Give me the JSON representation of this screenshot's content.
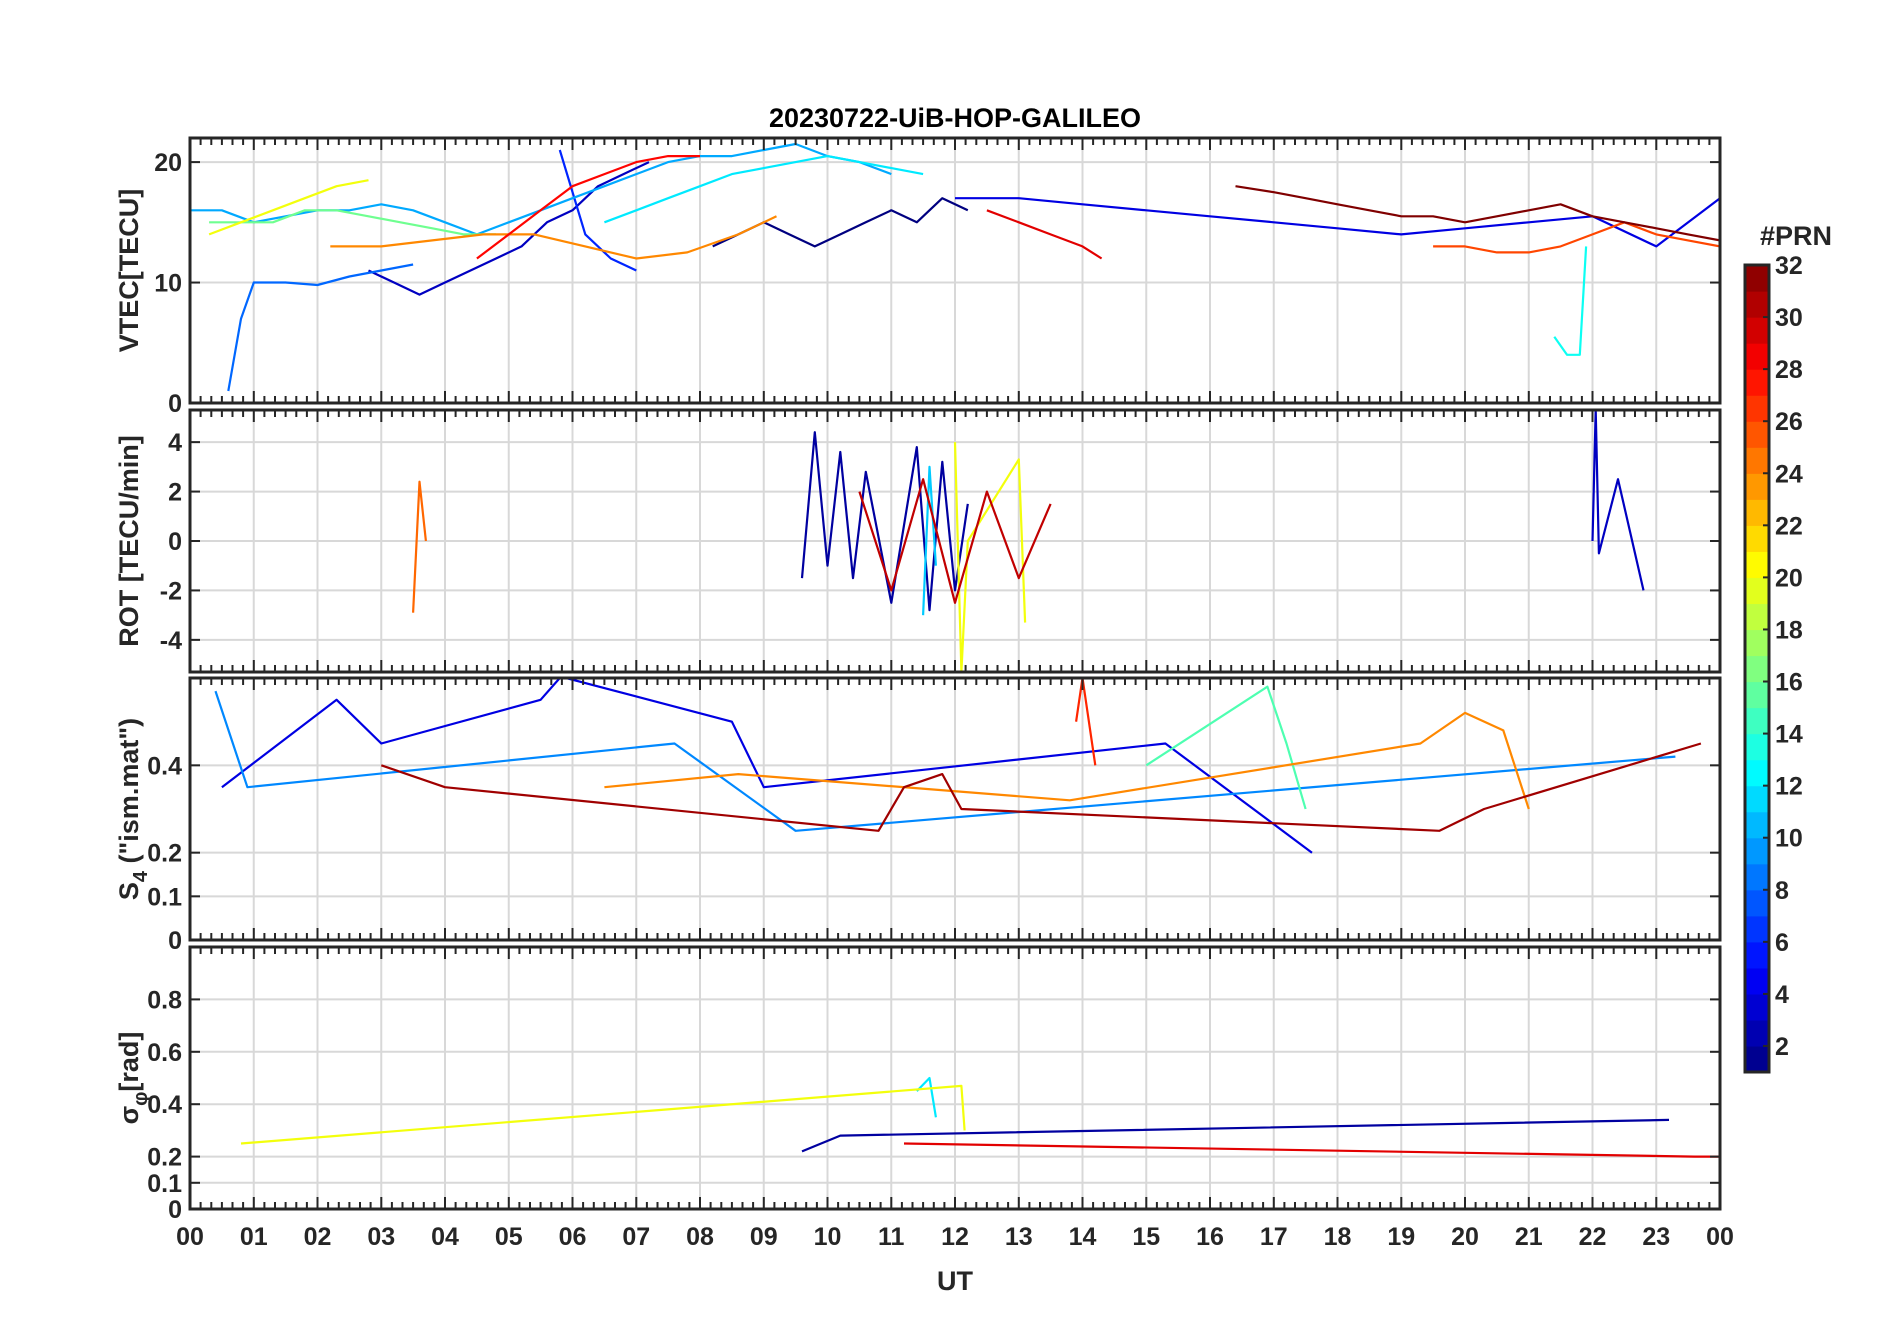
{
  "chart_data": {
    "type": "line",
    "title": "20230722-UiB-HOP-GALILEO",
    "x_axis": {
      "label": "UT",
      "range": [
        0,
        24
      ],
      "tick_labels": [
        "00",
        "01",
        "02",
        "03",
        "04",
        "05",
        "06",
        "07",
        "08",
        "09",
        "10",
        "11",
        "12",
        "13",
        "14",
        "15",
        "16",
        "17",
        "18",
        "19",
        "20",
        "21",
        "22",
        "23",
        "00"
      ],
      "grid": true
    },
    "panels": [
      {
        "ylabel": "VTEC[TECU]",
        "ylim": [
          0,
          22
        ],
        "yticks": [
          0,
          10,
          20
        ],
        "ytick_labels": [
          "0",
          "10",
          "20"
        ],
        "series": [
          {
            "prn": 1,
            "x": [
              8.2,
              8.6,
              9.0,
              9.4,
              9.8,
              10.2,
              10.6,
              11.0,
              11.4,
              11.8,
              12.2
            ],
            "y": [
              13,
              14,
              15,
              14,
              13,
              14,
              15,
              16,
              15,
              17,
              16
            ]
          },
          {
            "prn": 3,
            "x": [
              2.8,
              3.2,
              3.6,
              4.0,
              4.4,
              4.8,
              5.2,
              5.6,
              6.0,
              6.4,
              6.8,
              7.2
            ],
            "y": [
              11,
              10,
              9,
              10,
              11,
              12,
              13,
              15,
              16,
              18,
              19,
              20
            ]
          },
          {
            "prn": 4,
            "x": [
              12.0,
              13.0,
              14.0,
              15.0,
              16.0,
              17.0,
              18.0,
              19.0,
              20.0,
              21.0,
              22.0,
              23.0,
              24.0
            ],
            "y": [
              17,
              17,
              16.5,
              16,
              15.5,
              15,
              14.5,
              14,
              14.5,
              15,
              15.5,
              13,
              17
            ]
          },
          {
            "prn": 6,
            "x": [
              5.8,
              6.2,
              6.6,
              7.0
            ],
            "y": [
              21,
              14,
              12,
              11
            ]
          },
          {
            "prn": 8,
            "x": [
              0.6,
              0.8,
              1.0,
              1.5,
              2.0,
              2.5,
              3.0,
              3.5
            ],
            "y": [
              1,
              7,
              10,
              10,
              9.8,
              10.5,
              11,
              11.5
            ]
          },
          {
            "prn": 10,
            "x": [
              0.0,
              0.5,
              1.0,
              1.5,
              2.0,
              2.5,
              3.0,
              3.5,
              4.0,
              4.5,
              5.0,
              5.5,
              6.0,
              6.5,
              7.0,
              7.5,
              8.0,
              8.5,
              9.0,
              9.5,
              10.0,
              10.5,
              11.0
            ],
            "y": [
              16,
              16,
              15,
              15.5,
              16,
              16,
              16.5,
              16,
              15,
              14,
              15,
              16,
              17,
              18,
              19,
              20,
              20.5,
              20.5,
              21,
              21.5,
              20.5,
              20,
              19
            ]
          },
          {
            "prn": 12,
            "x": [
              6.5,
              7.0,
              7.5,
              8.0,
              8.5,
              9.0,
              9.5,
              10.0,
              10.5,
              11.0,
              11.5
            ],
            "y": [
              15,
              16,
              17,
              18,
              19,
              19.5,
              20,
              20.5,
              20,
              19.5,
              19
            ]
          },
          {
            "prn": 13,
            "x": [
              21.4,
              21.6,
              21.8,
              21.9
            ],
            "y": [
              5.5,
              4,
              4,
              13
            ]
          },
          {
            "prn": 16,
            "x": [
              0.3,
              0.8,
              1.3,
              1.8,
              2.3,
              2.8,
              3.3,
              3.8,
              4.3,
              4.8
            ],
            "y": [
              15,
              15,
              15,
              16,
              16,
              15.5,
              15,
              14.5,
              14,
              14
            ]
          },
          {
            "prn": 20,
            "x": [
              0.3,
              0.8,
              1.3,
              1.8,
              2.3,
              2.8
            ],
            "y": [
              14,
              15,
              16,
              17,
              18,
              18.5
            ]
          },
          {
            "prn": 24,
            "x": [
              2.2,
              3.0,
              3.8,
              4.6,
              5.4,
              6.2,
              7.0,
              7.8,
              8.6,
              9.2
            ],
            "y": [
              13,
              13,
              13.5,
              14,
              14,
              13,
              12,
              12.5,
              14,
              15.5
            ]
          },
          {
            "prn": 26,
            "x": [
              19.5,
              20.0,
              20.5,
              21.0,
              21.5,
              22.0,
              22.5,
              23.0,
              23.5,
              24.0
            ],
            "y": [
              13,
              13,
              12.5,
              12.5,
              13,
              14,
              15,
              14,
              13.5,
              13
            ]
          },
          {
            "prn": 28,
            "x": [
              4.5,
              5.0,
              5.5,
              6.0,
              6.5,
              7.0,
              7.5,
              8.0
            ],
            "y": [
              12,
              14,
              16,
              18,
              19,
              20,
              20.5,
              20.5
            ]
          },
          {
            "prn": 29,
            "x": [
              12.5,
              13.0,
              13.5,
              14.0,
              14.3
            ],
            "y": [
              16,
              15,
              14,
              13,
              12
            ]
          },
          {
            "prn": 32,
            "x": [
              16.4,
              17.0,
              17.5,
              18.0,
              18.5,
              19.0,
              19.5,
              20.0,
              20.5,
              21.0,
              21.5,
              22.0,
              22.5,
              23.0,
              23.5,
              24.0
            ],
            "y": [
              18,
              17.5,
              17,
              16.5,
              16,
              15.5,
              15.5,
              15,
              15.5,
              16,
              16.5,
              15.5,
              15,
              14.5,
              14,
              13.5
            ]
          }
        ]
      },
      {
        "ylabel": "ROT [TECU/min]",
        "ylim": [
          -5.3,
          5.3
        ],
        "yticks": [
          -4,
          -2,
          0,
          2,
          4
        ],
        "ytick_labels": [
          "-4",
          "-2",
          "0",
          "2",
          "4"
        ],
        "series": [
          {
            "prn": 2,
            "x": [
              9.6,
              9.8,
              10.0,
              10.2,
              10.4,
              10.6,
              11.0,
              11.4,
              11.6,
              11.8,
              12.0,
              12.2
            ],
            "y": [
              -1.5,
              4.4,
              -1.0,
              3.6,
              -1.5,
              2.8,
              -2.5,
              3.8,
              -2.8,
              3.2,
              -2.0,
              1.5
            ]
          },
          {
            "prn": 3,
            "x": [
              22.0,
              22.05,
              22.1,
              22.4,
              22.8
            ],
            "y": [
              0,
              5.3,
              -0.5,
              2.5,
              -2.0
            ]
          },
          {
            "prn": 11,
            "x": [
              11.5,
              11.6,
              11.7
            ],
            "y": [
              -3.0,
              3.0,
              -1.0
            ]
          },
          {
            "prn": 20,
            "x": [
              12.0,
              12.1,
              12.2,
              13.0,
              13.1
            ],
            "y": [
              4.0,
              -5.3,
              0,
              3.3,
              -3.3
            ]
          },
          {
            "prn": 25,
            "x": [
              3.5,
              3.6,
              3.7
            ],
            "y": [
              -2.9,
              2.4,
              0
            ]
          },
          {
            "prn": 30,
            "x": [
              10.5,
              11.0,
              11.5,
              12.0,
              12.5,
              13.0,
              13.5
            ],
            "y": [
              2.0,
              -2.0,
              2.5,
              -2.5,
              2.0,
              -1.5,
              1.5
            ]
          }
        ]
      },
      {
        "ylabel": "S4 (\"ism.mat\")",
        "ylabel_main": "S",
        "ylabel_sub": "4",
        "ylabel_rest": "(\"ism.mat\")",
        "ylim": [
          0,
          0.6
        ],
        "yticks": [
          0,
          0.1,
          0.2,
          0.4
        ],
        "ytick_labels": [
          "0",
          "0.1",
          "0.2",
          "0.4"
        ],
        "series": [
          {
            "prn": 4,
            "x": [
              0.5,
              2.3,
              3.0,
              5.5,
              5.8,
              5.9,
              8.5,
              9.0,
              15.3,
              17.6
            ],
            "y": [
              0.35,
              0.55,
              0.45,
              0.55,
              0.6,
              0.6,
              0.5,
              0.35,
              0.45,
              0.2
            ]
          },
          {
            "prn": 9,
            "x": [
              0.4,
              0.9,
              7.6,
              9.5,
              23.3
            ],
            "y": [
              0.57,
              0.35,
              0.45,
              0.25,
              0.42
            ]
          },
          {
            "prn": 15,
            "x": [
              15.0,
              16.9,
              17.2,
              17.5
            ],
            "y": [
              0.4,
              0.58,
              0.45,
              0.3
            ]
          },
          {
            "prn": 24,
            "x": [
              6.5,
              8.6,
              13.8,
              19.3,
              20.0,
              20.6,
              21.0
            ],
            "y": [
              0.35,
              0.38,
              0.32,
              0.45,
              0.52,
              0.48,
              0.3
            ]
          },
          {
            "prn": 27,
            "x": [
              13.9,
              14.0,
              14.2
            ],
            "y": [
              0.5,
              0.6,
              0.4
            ]
          },
          {
            "prn": 31,
            "x": [
              3.0,
              4.0,
              10.8,
              11.2,
              11.8,
              12.1,
              19.6,
              20.3,
              23.7
            ],
            "y": [
              0.4,
              0.35,
              0.25,
              0.35,
              0.38,
              0.3,
              0.25,
              0.3,
              0.45
            ]
          }
        ]
      },
      {
        "ylabel": "σφ[rad]",
        "ylabel_main": "σ",
        "ylabel_sub": "φ",
        "ylabel_rest": "[rad]",
        "ylim": [
          0,
          1.0
        ],
        "yticks": [
          0,
          0.1,
          0.2,
          0.4,
          0.6,
          0.8
        ],
        "ytick_labels": [
          "0",
          "0.1",
          "0.2",
          "0.4",
          "0.6",
          "0.8"
        ],
        "series": [
          {
            "prn": 2,
            "x": [
              9.6,
              9.9,
              10.2,
              23.2
            ],
            "y": [
              0.22,
              0.25,
              0.28,
              0.34
            ]
          },
          {
            "prn": 12,
            "x": [
              11.4,
              11.6,
              11.7
            ],
            "y": [
              0.45,
              0.5,
              0.35
            ]
          },
          {
            "prn": 20,
            "x": [
              0.8,
              12.1,
              12.15
            ],
            "y": [
              0.25,
              0.47,
              0.3
            ]
          },
          {
            "prn": 29,
            "x": [
              11.2,
              23.6,
              24.0
            ],
            "y": [
              0.25,
              0.2,
              0.2
            ]
          }
        ]
      }
    ],
    "colorbar": {
      "label": "#PRN",
      "range": [
        1,
        32
      ],
      "tick_labels": [
        "2",
        "4",
        "6",
        "8",
        "10",
        "12",
        "14",
        "16",
        "18",
        "20",
        "22",
        "24",
        "26",
        "28",
        "30",
        "32"
      ],
      "colormap": "jet",
      "position": "right"
    }
  }
}
